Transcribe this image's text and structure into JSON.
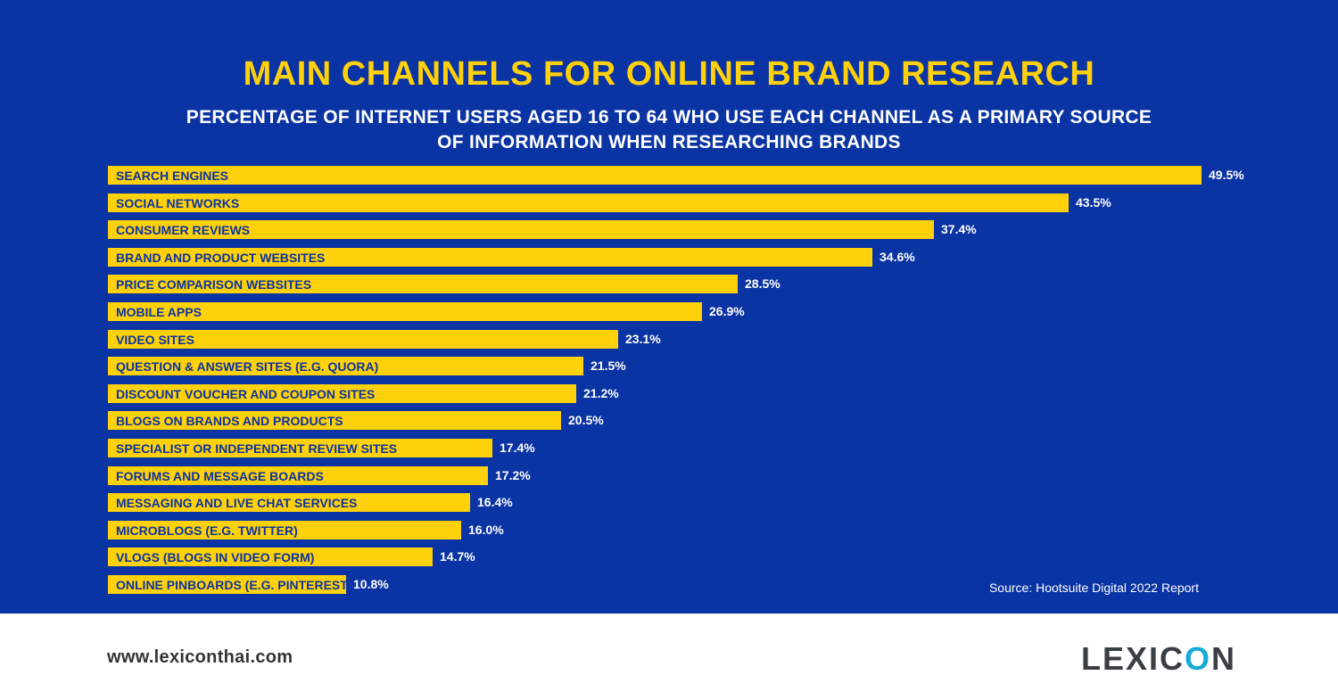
{
  "title": "MAIN CHANNELS FOR ONLINE BRAND RESEARCH",
  "subtitle": "PERCENTAGE OF INTERNET USERS AGED 16 TO 64 WHO USE EACH CHANNEL AS A PRIMARY SOURCE OF INFORMATION WHEN RESEARCHING BRANDS",
  "source": "Source: Hootsuite Digital 2022 Report",
  "website": "www.lexiconthai.com",
  "logo": {
    "prefix": "LEXIC",
    "accent": "O",
    "suffix": "N"
  },
  "colors": {
    "background": "#0a33a3",
    "bar": "#ffd10a",
    "title": "#ffd10a",
    "logo_accent": "#17a9d8"
  },
  "chart_data": {
    "type": "bar",
    "orientation": "horizontal",
    "title": "MAIN CHANNELS FOR ONLINE BRAND RESEARCH",
    "subtitle": "PERCENTAGE OF INTERNET USERS AGED 16 TO 64 WHO USE EACH CHANNEL AS A PRIMARY SOURCE OF INFORMATION WHEN RESEARCHING BRANDS",
    "categories": [
      "SEARCH ENGINES",
      "SOCIAL NETWORKS",
      "CONSUMER REVIEWS",
      "BRAND AND PRODUCT WEBSITES",
      "PRICE COMPARISON WEBSITES",
      "MOBILE APPS",
      "VIDEO SITES",
      "QUESTION & ANSWER SITES (E.G. QUORA)",
      "DISCOUNT VOUCHER AND COUPON SITES",
      "BLOGS ON BRANDS AND PRODUCTS",
      "SPECIALIST OR INDEPENDENT REVIEW SITES",
      "FORUMS AND MESSAGE BOARDS",
      "MESSAGING AND LIVE CHAT SERVICES",
      "MICROBLOGS (E.G. TWITTER)",
      "VLOGS (BLOGS IN VIDEO FORM)",
      "ONLINE PINBOARDS (E.G. PINTEREST)"
    ],
    "values": [
      49.5,
      43.5,
      37.4,
      34.6,
      28.5,
      26.9,
      23.1,
      21.5,
      21.2,
      20.5,
      17.4,
      17.2,
      16.4,
      16.0,
      14.7,
      10.8
    ],
    "value_labels": [
      "49.5%",
      "43.5%",
      "37.4%",
      "34.6%",
      "28.5%",
      "26.9%",
      "23.1%",
      "21.5%",
      "21.2%",
      "20.5%",
      "17.4%",
      "17.2%",
      "16.4%",
      "16.0%",
      "14.7%",
      "10.8%"
    ],
    "unit": "%",
    "grid": false,
    "legend": "none"
  }
}
